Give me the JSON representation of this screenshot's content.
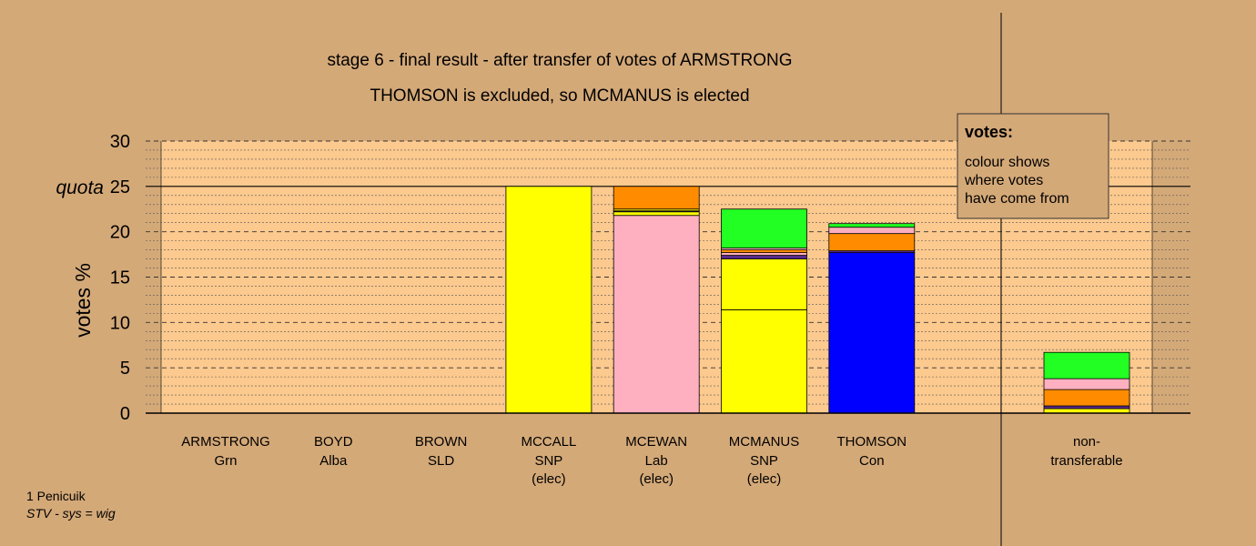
{
  "chart_data": {
    "type": "bar",
    "stacked": true,
    "title": "stage 6 - final result - after transfer of votes of ARMSTRONG",
    "subtitle": "THOMSON is excluded, so MCMANUS is elected",
    "ylabel": "votes %",
    "ylim": [
      0,
      30
    ],
    "yticks": [
      0,
      5,
      10,
      15,
      20,
      25,
      30
    ],
    "quota": {
      "label": "quota",
      "value": 25
    },
    "colors": {
      "background": "#d4a978",
      "plot_background": "#fcc98e",
      "SNP": "#ffff00",
      "Lab": "#ffb0c0",
      "Con": "#0000ff",
      "Grn": "#22ff22",
      "Alba": "#5a2a8a",
      "SLD": "#ff8c00"
    },
    "legend": {
      "title": "votes:",
      "lines": [
        "colour shows",
        "where votes",
        "have come from"
      ],
      "placement": "top-right"
    },
    "candidates": [
      {
        "name": "ARMSTRONG",
        "party": "Grn",
        "status": "",
        "segments": []
      },
      {
        "name": "BOYD",
        "party": "Alba",
        "status": "",
        "segments": []
      },
      {
        "name": "BROWN",
        "party": "SLD",
        "status": "",
        "segments": []
      },
      {
        "name": "MCCALL",
        "party": "SNP",
        "status": "(elec)",
        "segments": [
          {
            "source": "SNP",
            "value": 25.0
          }
        ]
      },
      {
        "name": "MCEWAN",
        "party": "Lab",
        "status": "(elec)",
        "segments": [
          {
            "source": "Lab",
            "value": 21.8
          },
          {
            "source": "SNP",
            "value": 0.4
          },
          {
            "source": "Alba",
            "value": 0.1
          },
          {
            "source": "SNP",
            "value": 0.2
          },
          {
            "source": "SLD",
            "value": 2.5
          }
        ]
      },
      {
        "name": "MCMANUS",
        "party": "SNP",
        "status": "(elec)",
        "segments": [
          {
            "source": "SNP",
            "value": 11.4
          },
          {
            "source": "SNP",
            "value": 5.6
          },
          {
            "source": "Alba",
            "value": 0.4
          },
          {
            "source": "Lab",
            "value": 0.3
          },
          {
            "source": "SLD",
            "value": 0.3
          },
          {
            "source": "Lab",
            "value": 0.2
          },
          {
            "source": "Grn",
            "value": 4.3
          }
        ]
      },
      {
        "name": "THOMSON",
        "party": "Con",
        "status": "",
        "segments": [
          {
            "source": "Con",
            "value": 17.7
          },
          {
            "source": "Alba",
            "value": 0.2
          },
          {
            "source": "SLD",
            "value": 1.9
          },
          {
            "source": "Lab",
            "value": 0.7
          },
          {
            "source": "Grn",
            "value": 0.4
          }
        ]
      }
    ],
    "non_transferable": {
      "label_line1": "non-",
      "label_line2": "transferable",
      "segments": [
        {
          "source": "SNP",
          "value": 0.5
        },
        {
          "source": "Alba",
          "value": 0.3
        },
        {
          "source": "SLD",
          "value": 1.8
        },
        {
          "source": "Lab",
          "value": 1.2
        },
        {
          "source": "Grn",
          "value": 2.9
        }
      ]
    }
  },
  "footer": {
    "line1": "1 Penicuik",
    "line2": "STV - sys = wig"
  }
}
